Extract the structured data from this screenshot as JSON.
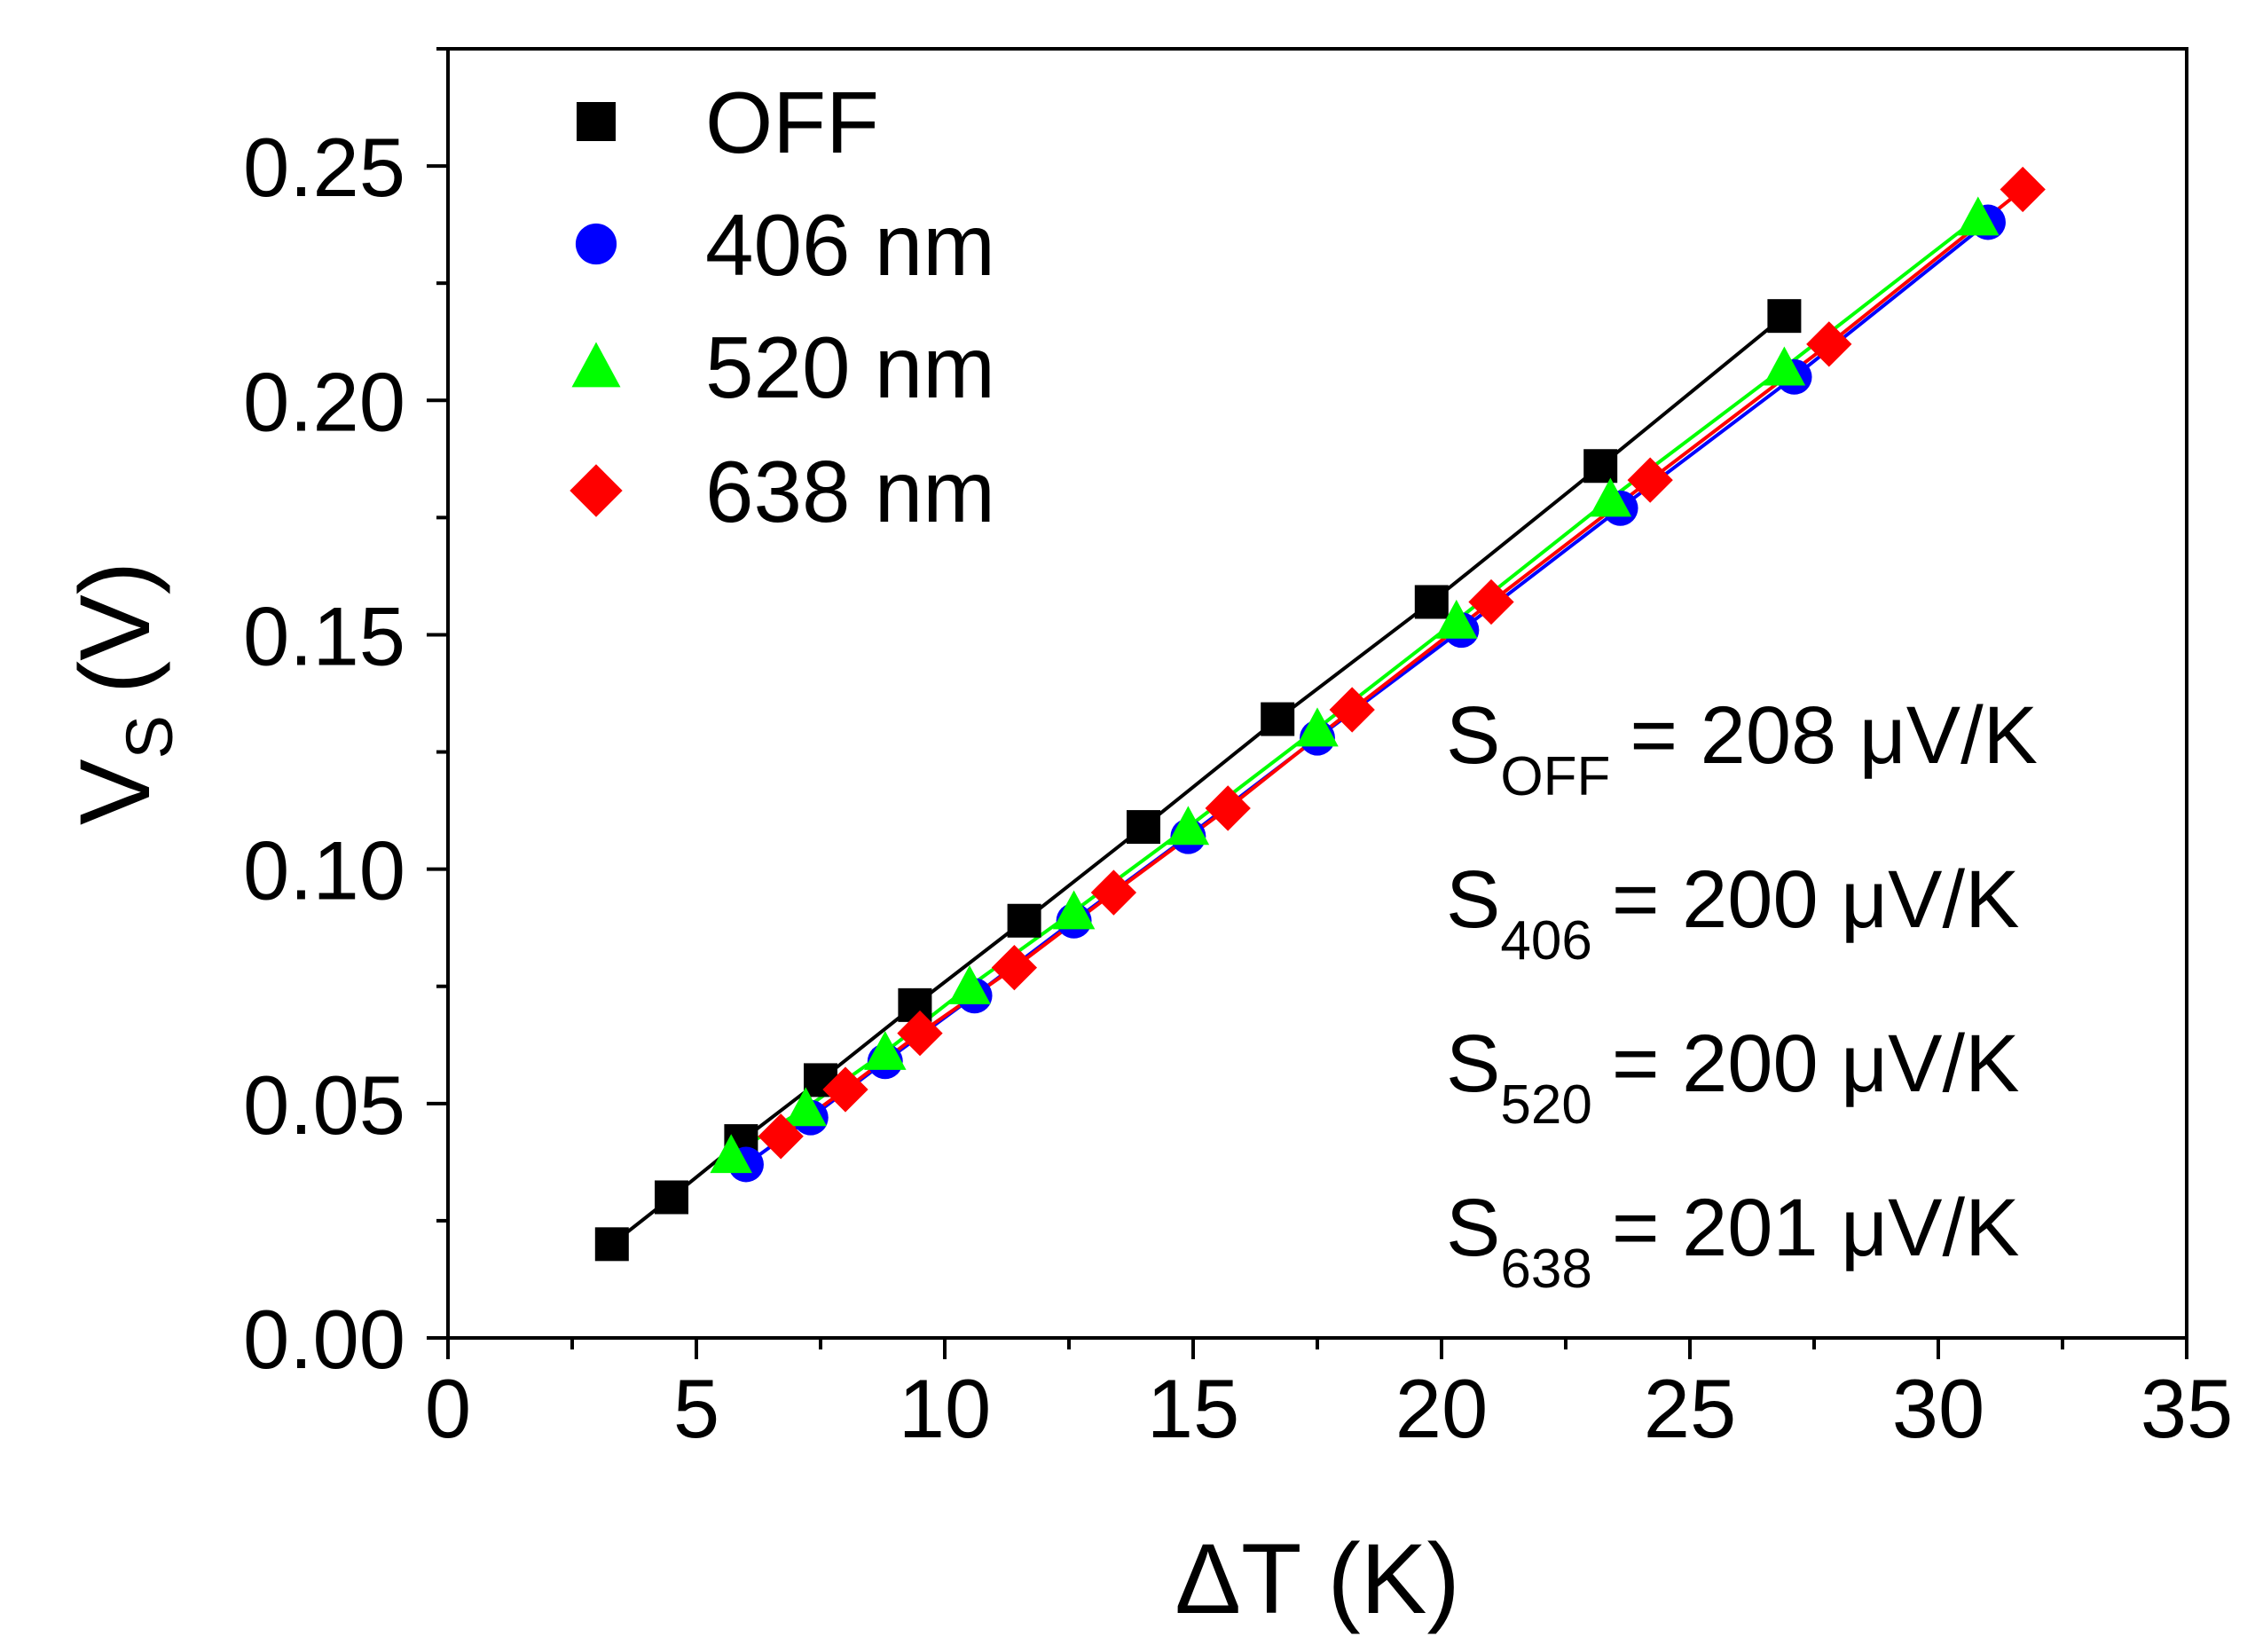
{
  "chart_data": {
    "type": "scatter",
    "xlabel": "ΔT (K)",
    "ylabel_main": "V",
    "ylabel_sub": "S",
    "ylabel_unit": "(V)",
    "xlim": [
      0,
      35
    ],
    "ylim": [
      0,
      0.275
    ],
    "x_ticks": [
      0,
      5,
      10,
      15,
      20,
      25,
      30,
      35
    ],
    "x_tick_labels": [
      "0",
      "5",
      "10",
      "15",
      "20",
      "25",
      "30",
      "35"
    ],
    "y_ticks": [
      0.0,
      0.05,
      0.1,
      0.15,
      0.2,
      0.25
    ],
    "y_tick_labels": [
      "0.00",
      "0.05",
      "0.10",
      "0.15",
      "0.20",
      "0.25"
    ],
    "grid": false,
    "legend_position": "top-left",
    "series": [
      {
        "name": "OFF",
        "marker": "square",
        "color": "#000000",
        "x": [
          3.3,
          4.5,
          5.9,
          7.5,
          9.4,
          11.6,
          14.0,
          16.7,
          19.8,
          23.2,
          26.9
        ],
        "y": [
          0.02,
          0.03,
          0.042,
          0.055,
          0.071,
          0.089,
          0.109,
          0.132,
          0.157,
          0.186,
          0.218
        ]
      },
      {
        "name": "406 nm",
        "marker": "circle",
        "color": "#0000ff",
        "x": [
          6.0,
          7.3,
          8.8,
          10.6,
          12.6,
          14.9,
          17.5,
          20.4,
          23.6,
          27.1,
          31.0
        ],
        "y": [
          0.037,
          0.047,
          0.059,
          0.073,
          0.089,
          0.107,
          0.128,
          0.151,
          0.177,
          0.205,
          0.238
        ]
      },
      {
        "name": "520 nm",
        "marker": "triangle",
        "color": "#00ff00",
        "x": [
          5.7,
          7.2,
          8.8,
          10.5,
          12.6,
          14.9,
          17.5,
          20.3,
          23.4,
          26.9,
          30.8
        ],
        "y": [
          0.039,
          0.049,
          0.061,
          0.075,
          0.091,
          0.109,
          0.13,
          0.153,
          0.179,
          0.207,
          0.239
        ]
      },
      {
        "name": "638 nm",
        "marker": "diamond",
        "color": "#ff0000",
        "x": [
          6.7,
          8.0,
          9.5,
          11.4,
          13.4,
          15.7,
          18.2,
          21.0,
          24.2,
          27.8,
          31.7
        ],
        "y": [
          0.043,
          0.053,
          0.065,
          0.079,
          0.095,
          0.113,
          0.134,
          0.157,
          0.183,
          0.212,
          0.245
        ]
      }
    ],
    "annotations": [
      {
        "main": "S",
        "sub": "OFF",
        "text": "= 208 μV/K"
      },
      {
        "main": "S",
        "sub": "406",
        "text": "= 200 μV/K"
      },
      {
        "main": "S",
        "sub": "520",
        "text": "= 200 μV/K"
      },
      {
        "main": "S",
        "sub": "638",
        "text": "= 201 μV/K"
      }
    ]
  }
}
